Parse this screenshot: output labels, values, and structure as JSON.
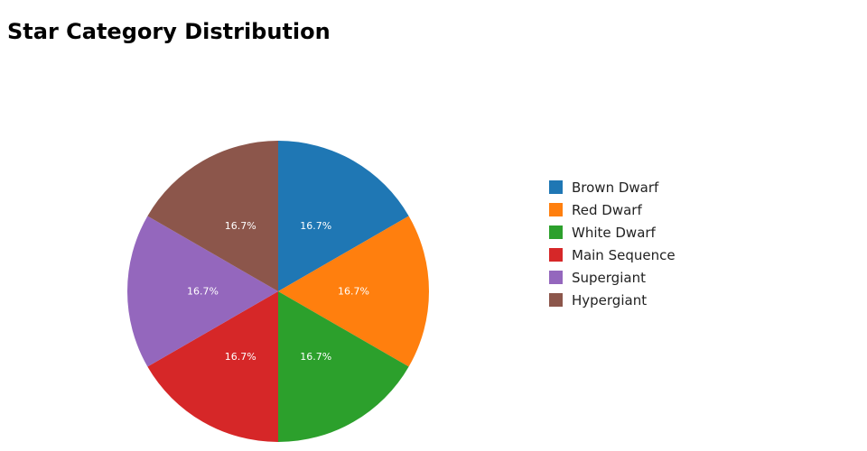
{
  "chart_data": {
    "type": "pie",
    "title": "Star Category Distribution",
    "categories": [
      "Brown Dwarf",
      "Red Dwarf",
      "White Dwarf",
      "Main Sequence",
      "Supergiant",
      "Hypergiant"
    ],
    "values": [
      1,
      1,
      1,
      1,
      1,
      1
    ],
    "percent_labels": [
      "16.7%",
      "16.7%",
      "16.7%",
      "16.7%",
      "16.7%",
      "16.7%"
    ],
    "colors": [
      "#1f77b4",
      "#ff7f0e",
      "#2ca02c",
      "#d62728",
      "#9467bd",
      "#8c564b"
    ],
    "legend_position": "right",
    "start_angle": "top, clockwise"
  }
}
